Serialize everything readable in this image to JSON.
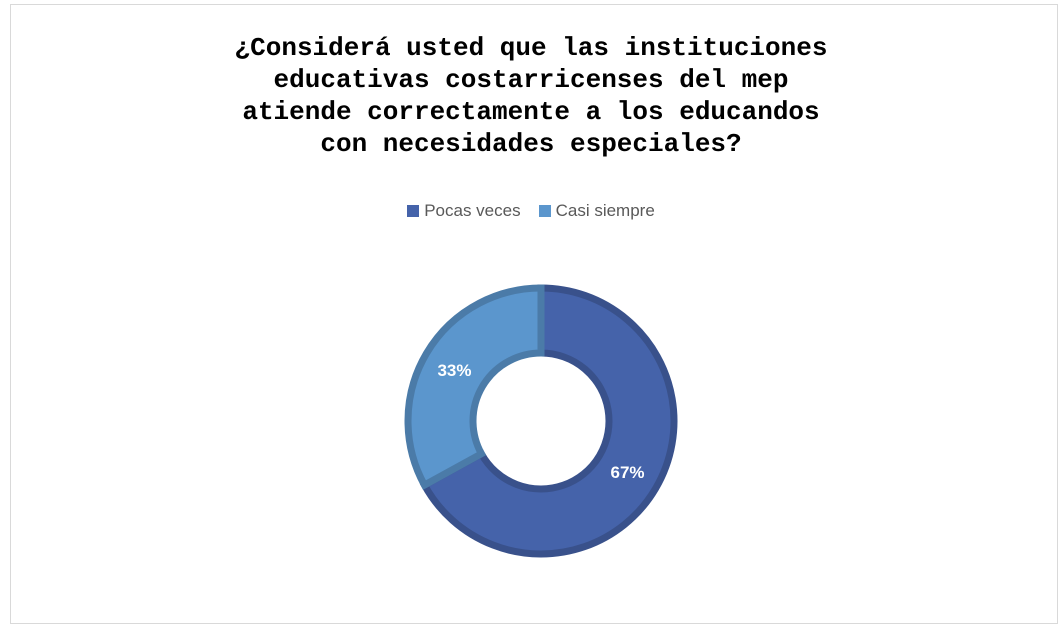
{
  "chart_data": {
    "type": "pie",
    "variant": "doughnut",
    "title_lines": [
      "¿Considerá usted que las instituciones",
      "educativas costarricenses del mep",
      "atiende correctamente a los educandos",
      "con necesidades especiales?"
    ],
    "legend_position": "top",
    "categories": [
      "Pocas veces",
      "Casi siempre"
    ],
    "values": [
      67,
      33
    ],
    "data_labels": [
      "67%",
      "33%"
    ],
    "colors": [
      "#4563aa",
      "#5b96cd"
    ]
  }
}
